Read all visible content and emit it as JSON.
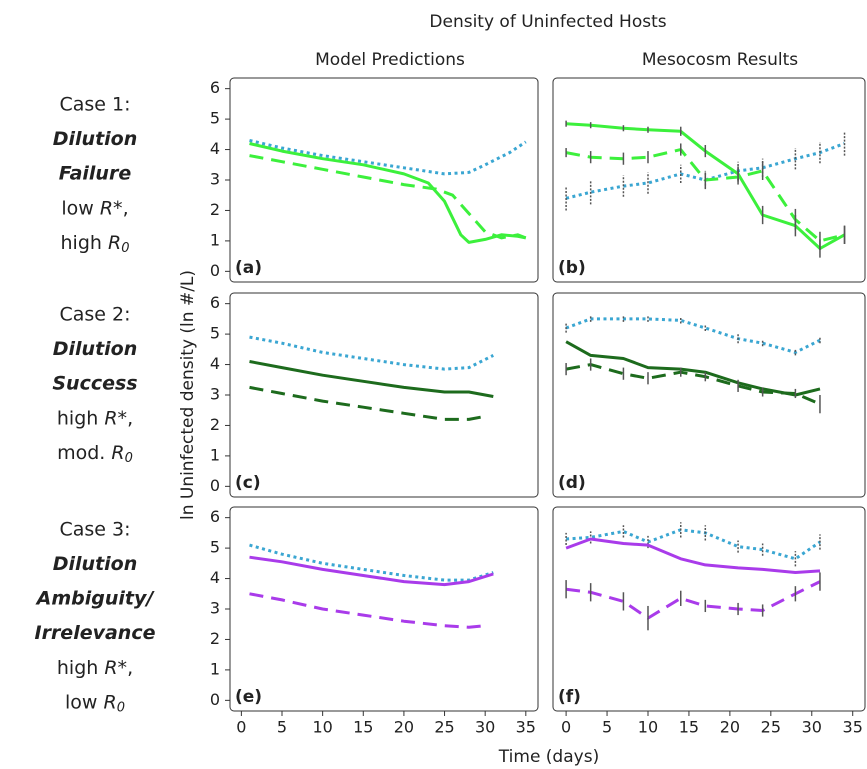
{
  "figure": {
    "title": "Density of Uninfected Hosts",
    "column_titles": [
      "Model Predictions",
      "Mesocosm Results"
    ],
    "ylabel": "ln Uninfected density (ln #/L)",
    "xlabel": "Time (days)",
    "cases": [
      {
        "case": "Case 1:",
        "name": [
          "Dilution",
          "Failure"
        ],
        "conditions": [
          "low R*,",
          "high R0"
        ]
      },
      {
        "case": "Case 2:",
        "name": [
          "Dilution",
          "Success"
        ],
        "conditions": [
          "high R*,",
          "mod. R0"
        ]
      },
      {
        "case": "Case 3:",
        "name": [
          "Dilution",
          "Ambiguity/",
          "Irrelevance"
        ],
        "conditions": [
          "high R*,",
          "low R0"
        ]
      }
    ]
  },
  "chart_data": [
    {
      "type": "line",
      "label": "(a)",
      "xlim": [
        -1.4,
        36.5
      ],
      "ylim": [
        -0.35,
        6.35
      ],
      "yticks": [
        0,
        1,
        2,
        3,
        4,
        5,
        6
      ],
      "series": [
        {
          "color": "#3aa6d2",
          "style": "dotted",
          "x": [
            1,
            5,
            10,
            15,
            20,
            25,
            28,
            30,
            33,
            35
          ],
          "values": [
            4.3,
            4.05,
            3.8,
            3.6,
            3.4,
            3.2,
            3.25,
            3.5,
            3.9,
            4.25
          ]
        },
        {
          "color": "#3cf03c",
          "style": "solid",
          "x": [
            1,
            5,
            10,
            15,
            20,
            23,
            25,
            27,
            28,
            30,
            32,
            34,
            35
          ],
          "values": [
            4.2,
            3.95,
            3.7,
            3.5,
            3.2,
            2.9,
            2.3,
            1.2,
            0.95,
            1.05,
            1.2,
            1.15,
            1.1
          ]
        },
        {
          "color": "#3cf03c",
          "style": "dashed",
          "x": [
            1,
            5,
            10,
            15,
            20,
            24,
            26,
            28,
            30,
            32,
            34,
            35
          ],
          "values": [
            3.8,
            3.6,
            3.35,
            3.1,
            2.85,
            2.7,
            2.5,
            1.9,
            1.3,
            1.1,
            1.2,
            1.1
          ]
        }
      ]
    },
    {
      "type": "line",
      "label": "(b)",
      "xlim": [
        -1.6,
        36.5
      ],
      "ylim": [
        -0.35,
        6.35
      ],
      "series": [
        {
          "color": "#3aa6d2",
          "style": "dotted",
          "x": [
            0,
            3,
            7,
            10,
            14,
            17,
            21,
            24,
            28,
            31,
            34
          ],
          "values": [
            2.4,
            2.6,
            2.8,
            2.9,
            3.2,
            3.0,
            3.3,
            3.4,
            3.7,
            3.9,
            4.2
          ],
          "errors": [
            0.4,
            0.4,
            0.35,
            0.35,
            0.3,
            0.3,
            0.3,
            0.3,
            0.35,
            0.35,
            0.4
          ]
        },
        {
          "color": "#3cf03c",
          "style": "solid",
          "x": [
            0,
            3,
            7,
            10,
            14,
            17,
            21,
            24,
            28,
            31,
            34
          ],
          "values": [
            4.85,
            4.8,
            4.7,
            4.65,
            4.6,
            3.95,
            3.2,
            1.85,
            1.5,
            0.75,
            1.2
          ],
          "errors": [
            0.1,
            0.1,
            0.1,
            0.1,
            0.15,
            0.2,
            0.25,
            0.3,
            0.35,
            0.3,
            0.3
          ]
        },
        {
          "color": "#3cf03c",
          "style": "dashed",
          "x": [
            0,
            3,
            7,
            10,
            14,
            17,
            21,
            24,
            28,
            31,
            34
          ],
          "values": [
            3.9,
            3.75,
            3.7,
            3.75,
            4.0,
            3.0,
            3.1,
            3.3,
            1.7,
            1.0,
            1.2
          ],
          "errors": [
            0.15,
            0.2,
            0.2,
            0.2,
            0.2,
            0.25,
            0.25,
            0.3,
            0.35,
            0.3,
            0.3
          ]
        }
      ]
    },
    {
      "type": "line",
      "label": "(c)",
      "xlim": [
        -1.4,
        36.5
      ],
      "ylim": [
        -0.35,
        6.35
      ],
      "yticks": [
        0,
        1,
        2,
        3,
        4,
        5,
        6
      ],
      "series": [
        {
          "color": "#3aa6d2",
          "style": "dotted",
          "x": [
            1,
            5,
            10,
            15,
            20,
            25,
            28,
            31
          ],
          "values": [
            4.9,
            4.7,
            4.4,
            4.2,
            4.0,
            3.85,
            3.9,
            4.3
          ]
        },
        {
          "color": "#1d6b1d",
          "style": "solid",
          "x": [
            1,
            5,
            10,
            15,
            20,
            25,
            28,
            31
          ],
          "values": [
            4.1,
            3.9,
            3.65,
            3.45,
            3.25,
            3.1,
            3.1,
            2.95
          ]
        },
        {
          "color": "#1d6b1d",
          "style": "dashed",
          "x": [
            1,
            5,
            10,
            15,
            20,
            25,
            28,
            30
          ],
          "values": [
            3.25,
            3.05,
            2.8,
            2.6,
            2.4,
            2.2,
            2.2,
            2.3
          ]
        }
      ]
    },
    {
      "type": "line",
      "label": "(d)",
      "xlim": [
        -1.6,
        36.5
      ],
      "ylim": [
        -0.35,
        6.35
      ],
      "series": [
        {
          "color": "#3aa6d2",
          "style": "dotted",
          "x": [
            0,
            3,
            7,
            10,
            14,
            17,
            21,
            24,
            28,
            31
          ],
          "values": [
            5.2,
            5.5,
            5.5,
            5.5,
            5.45,
            5.2,
            4.85,
            4.7,
            4.4,
            4.8
          ],
          "errors": [
            0.15,
            0.1,
            0.1,
            0.1,
            0.1,
            0.1,
            0.15,
            0.1,
            0.1,
            0.1
          ]
        },
        {
          "color": "#1d6b1d",
          "style": "solid",
          "x": [
            0,
            3,
            7,
            10,
            14,
            17,
            21,
            24,
            28,
            31
          ],
          "values": [
            4.75,
            4.3,
            4.2,
            3.9,
            3.85,
            3.75,
            3.4,
            3.2,
            3.0,
            3.2
          ]
        },
        {
          "color": "#1d6b1d",
          "style": "dashed",
          "x": [
            0,
            3,
            7,
            10,
            14,
            17,
            21,
            24,
            28,
            31
          ],
          "values": [
            3.85,
            4.0,
            3.7,
            3.55,
            3.75,
            3.6,
            3.3,
            3.1,
            3.05,
            2.7
          ],
          "errors": [
            0.2,
            0.2,
            0.2,
            0.2,
            0.15,
            0.15,
            0.2,
            0.15,
            0.15,
            0.3
          ]
        }
      ]
    },
    {
      "type": "line",
      "label": "(e)",
      "xlim": [
        -1.4,
        36.5
      ],
      "ylim": [
        -0.35,
        6.35
      ],
      "yticks": [
        0,
        1,
        2,
        3,
        4,
        5,
        6
      ],
      "xticks": [
        0,
        5,
        10,
        15,
        20,
        25,
        30,
        35
      ],
      "series": [
        {
          "color": "#3aa6d2",
          "style": "dotted",
          "x": [
            1,
            5,
            10,
            15,
            20,
            25,
            28,
            31
          ],
          "values": [
            5.1,
            4.8,
            4.5,
            4.3,
            4.1,
            3.95,
            3.95,
            4.2
          ]
        },
        {
          "color": "#a93bea",
          "style": "solid",
          "x": [
            1,
            5,
            10,
            15,
            20,
            25,
            28,
            31
          ],
          "values": [
            4.7,
            4.55,
            4.3,
            4.1,
            3.9,
            3.8,
            3.9,
            4.15
          ]
        },
        {
          "color": "#a93bea",
          "style": "dashed",
          "x": [
            1,
            5,
            10,
            15,
            20,
            25,
            28,
            30
          ],
          "values": [
            3.5,
            3.3,
            3.0,
            2.8,
            2.6,
            2.45,
            2.4,
            2.45
          ]
        }
      ]
    },
    {
      "type": "line",
      "label": "(f)",
      "xlim": [
        -1.6,
        36.5
      ],
      "ylim": [
        -0.35,
        6.35
      ],
      "xticks": [
        0,
        5,
        10,
        15,
        20,
        25,
        30,
        35
      ],
      "series": [
        {
          "color": "#3aa6d2",
          "style": "dotted",
          "x": [
            0,
            3,
            7,
            10,
            14,
            17,
            21,
            24,
            28,
            31
          ],
          "values": [
            5.3,
            5.35,
            5.55,
            5.2,
            5.6,
            5.5,
            5.05,
            4.95,
            4.65,
            5.2
          ],
          "errors": [
            0.2,
            0.2,
            0.2,
            0.2,
            0.25,
            0.25,
            0.2,
            0.2,
            0.25,
            0.25
          ]
        },
        {
          "color": "#a93bea",
          "style": "solid",
          "x": [
            0,
            3,
            7,
            10,
            14,
            17,
            21,
            24,
            28,
            31
          ],
          "values": [
            5.0,
            5.3,
            5.15,
            5.1,
            4.65,
            4.45,
            4.35,
            4.3,
            4.2,
            4.25
          ]
        },
        {
          "color": "#a93bea",
          "style": "dashed",
          "x": [
            0,
            3,
            7,
            10,
            14,
            17,
            21,
            24,
            28,
            31
          ],
          "values": [
            3.65,
            3.55,
            3.25,
            2.7,
            3.35,
            3.1,
            3.0,
            2.95,
            3.5,
            3.9
          ],
          "errors": [
            0.3,
            0.3,
            0.3,
            0.4,
            0.25,
            0.2,
            0.2,
            0.2,
            0.25,
            0.3
          ]
        }
      ]
    }
  ]
}
